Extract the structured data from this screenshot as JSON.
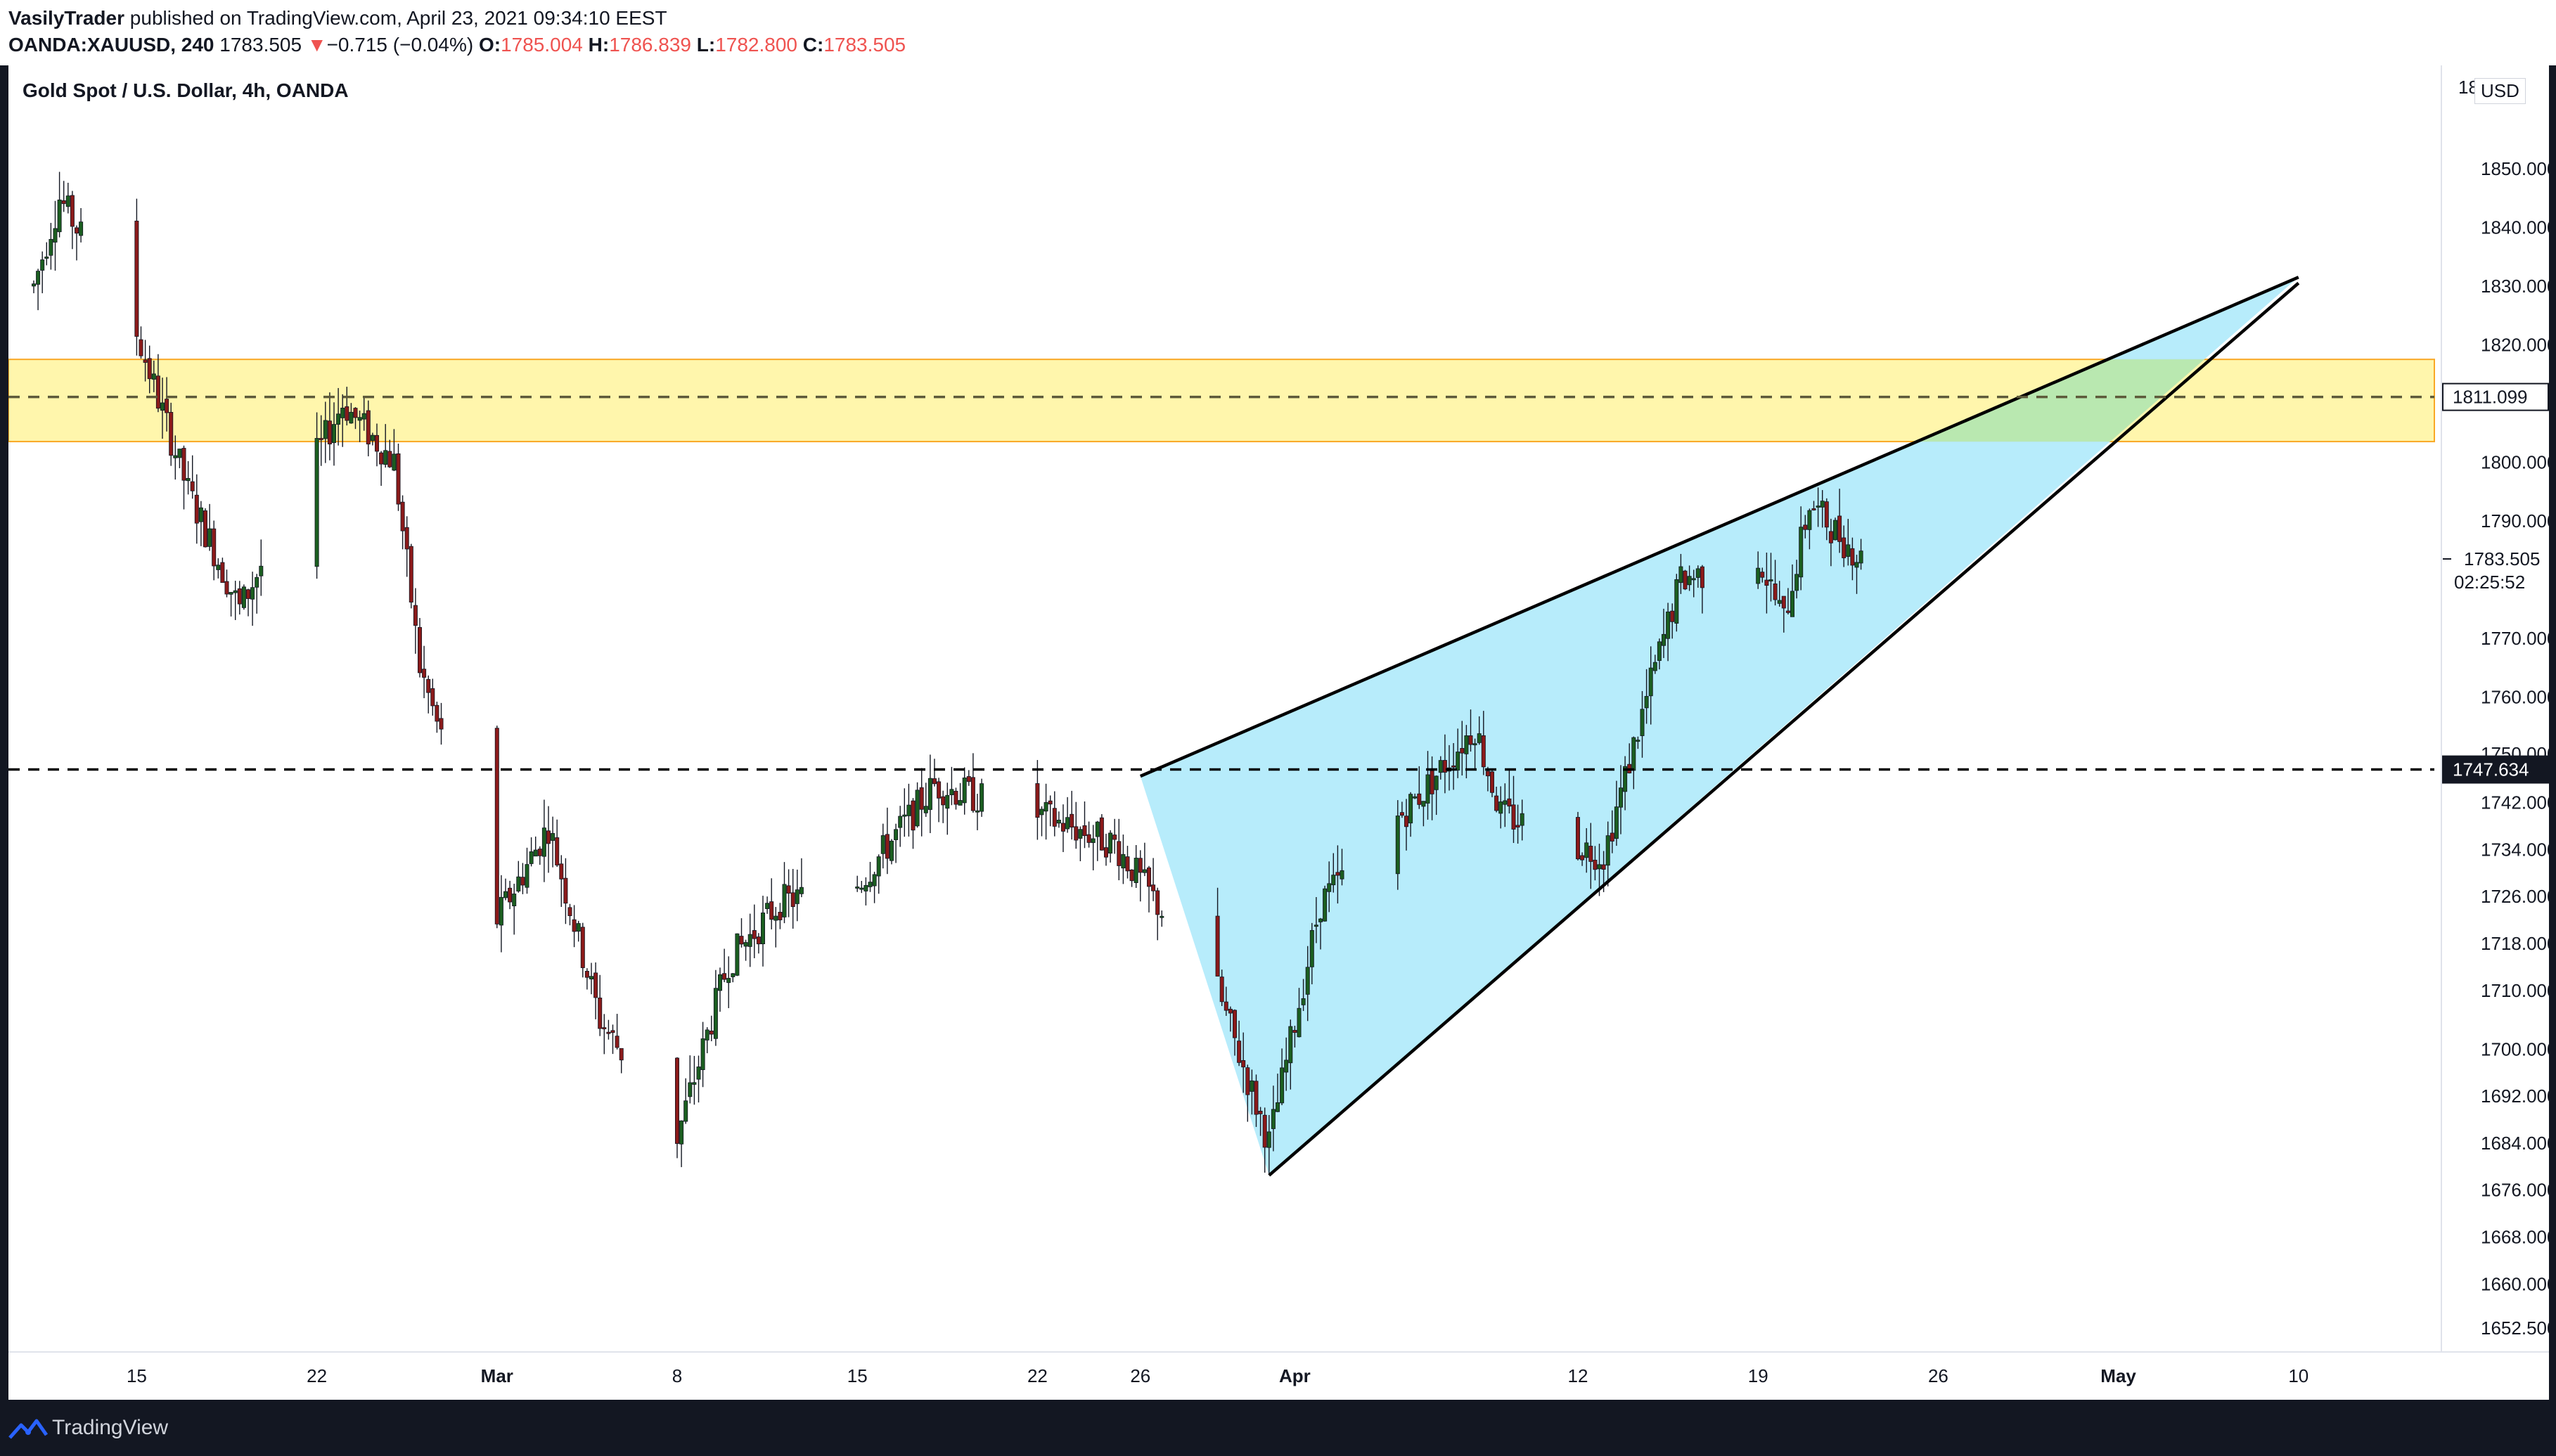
{
  "header": {
    "author": "VasilyTrader",
    "published_text": "published on TradingView.com, April 23, 2021 09:34:10 EEST",
    "symbol": "OANDA:XAUUSD, 240",
    "last_price": "1783.505",
    "change_arrow": "▼",
    "change": "−0.715 (−0.04%)",
    "open_label": "O:",
    "open": "1785.004",
    "high_label": "H:",
    "high": "1786.839",
    "low_label": "L:",
    "low": "1782.800",
    "close_label": "C:",
    "close": "1783.505"
  },
  "chart": {
    "title": "Gold Spot / U.S. Dollar, 4h, OANDA",
    "currency": "USD",
    "price_axis_ticks": [
      "1850.000",
      "1840.000",
      "1830.000",
      "1820.000",
      "1800.000",
      "1790.000",
      "1770.000",
      "1760.000",
      "1750.000",
      "1742.000",
      "1734.000",
      "1726.000",
      "1718.000",
      "1710.000",
      "1700.000",
      "1692.000",
      "1684.000",
      "1676.000",
      "1668.000",
      "1660.000",
      "1652.500"
    ],
    "top_tick_partial": "18",
    "price_labels": {
      "resistance_level": "1811.099",
      "support_level": "1747.634",
      "current_price": "1783.505",
      "countdown": "02:25:52"
    },
    "time_axis_labels": [
      "15",
      "22",
      "Mar",
      "8",
      "15",
      "22",
      "26",
      "Apr",
      "12",
      "19",
      "26",
      "May",
      "10"
    ],
    "colors": {
      "up_candle": "#1b5e20",
      "down_candle": "#8b1a1a",
      "wedge_fill": "#b3ebfb",
      "zone_fill": "#fff59d",
      "zone_border": "#f9a825",
      "overlap_fill": "#b9e8b0",
      "dashed_line": "#000000",
      "axis_text": "#131722"
    }
  },
  "chart_data": {
    "type": "candlestick",
    "title": "Gold Spot / U.S. Dollar, 4h, OANDA",
    "y_unit": "USD",
    "y_range": [
      1646,
      1858
    ],
    "x_tick_labels": [
      "15",
      "22",
      "Mar",
      "8",
      "15",
      "22",
      "26",
      "Apr",
      "12",
      "19",
      "26",
      "May",
      "10"
    ],
    "close_path_approx": [
      {
        "date": "2021-02-11",
        "price": 1830
      },
      {
        "date": "2021-02-12",
        "price": 1845
      },
      {
        "date": "2021-02-15",
        "price": 1822
      },
      {
        "date": "2021-02-17",
        "price": 1795
      },
      {
        "date": "2021-02-19",
        "price": 1775
      },
      {
        "date": "2021-02-23",
        "price": 1810
      },
      {
        "date": "2021-02-25",
        "price": 1800
      },
      {
        "date": "2021-02-26",
        "price": 1765
      },
      {
        "date": "2021-03-01",
        "price": 1722
      },
      {
        "date": "2021-03-03",
        "price": 1738
      },
      {
        "date": "2021-03-05",
        "price": 1705
      },
      {
        "date": "2021-03-08",
        "price": 1685
      },
      {
        "date": "2021-03-10",
        "price": 1715
      },
      {
        "date": "2021-03-12",
        "price": 1725
      },
      {
        "date": "2021-03-15",
        "price": 1728
      },
      {
        "date": "2021-03-18",
        "price": 1745
      },
      {
        "date": "2021-03-22",
        "price": 1740
      },
      {
        "date": "2021-03-25",
        "price": 1735
      },
      {
        "date": "2021-03-29",
        "price": 1710
      },
      {
        "date": "2021-03-31",
        "price": 1684
      },
      {
        "date": "2021-04-02",
        "price": 1725
      },
      {
        "date": "2021-04-06",
        "price": 1744
      },
      {
        "date": "2021-04-08",
        "price": 1755
      },
      {
        "date": "2021-04-09",
        "price": 1740
      },
      {
        "date": "2021-04-13",
        "price": 1733
      },
      {
        "date": "2021-04-15",
        "price": 1765
      },
      {
        "date": "2021-04-16",
        "price": 1780
      },
      {
        "date": "2021-04-19",
        "price": 1784
      },
      {
        "date": "2021-04-20",
        "price": 1773
      },
      {
        "date": "2021-04-21",
        "price": 1793
      },
      {
        "date": "2021-04-23",
        "price": 1783.505
      }
    ],
    "horizontal_levels": [
      1811.099,
      1747.634
    ],
    "resistance_zone": [
      1803.5,
      1817.5
    ],
    "wedge": {
      "upper_line": [
        {
          "date": "2021-03-26",
          "price": 1746.5
        },
        {
          "date": "2021-05-10",
          "price": 1831.5
        }
      ],
      "lower_line": [
        {
          "date": "2021-03-31",
          "price": 1678.5
        },
        {
          "date": "2021-05-10",
          "price": 1830.5
        }
      ]
    }
  }
}
